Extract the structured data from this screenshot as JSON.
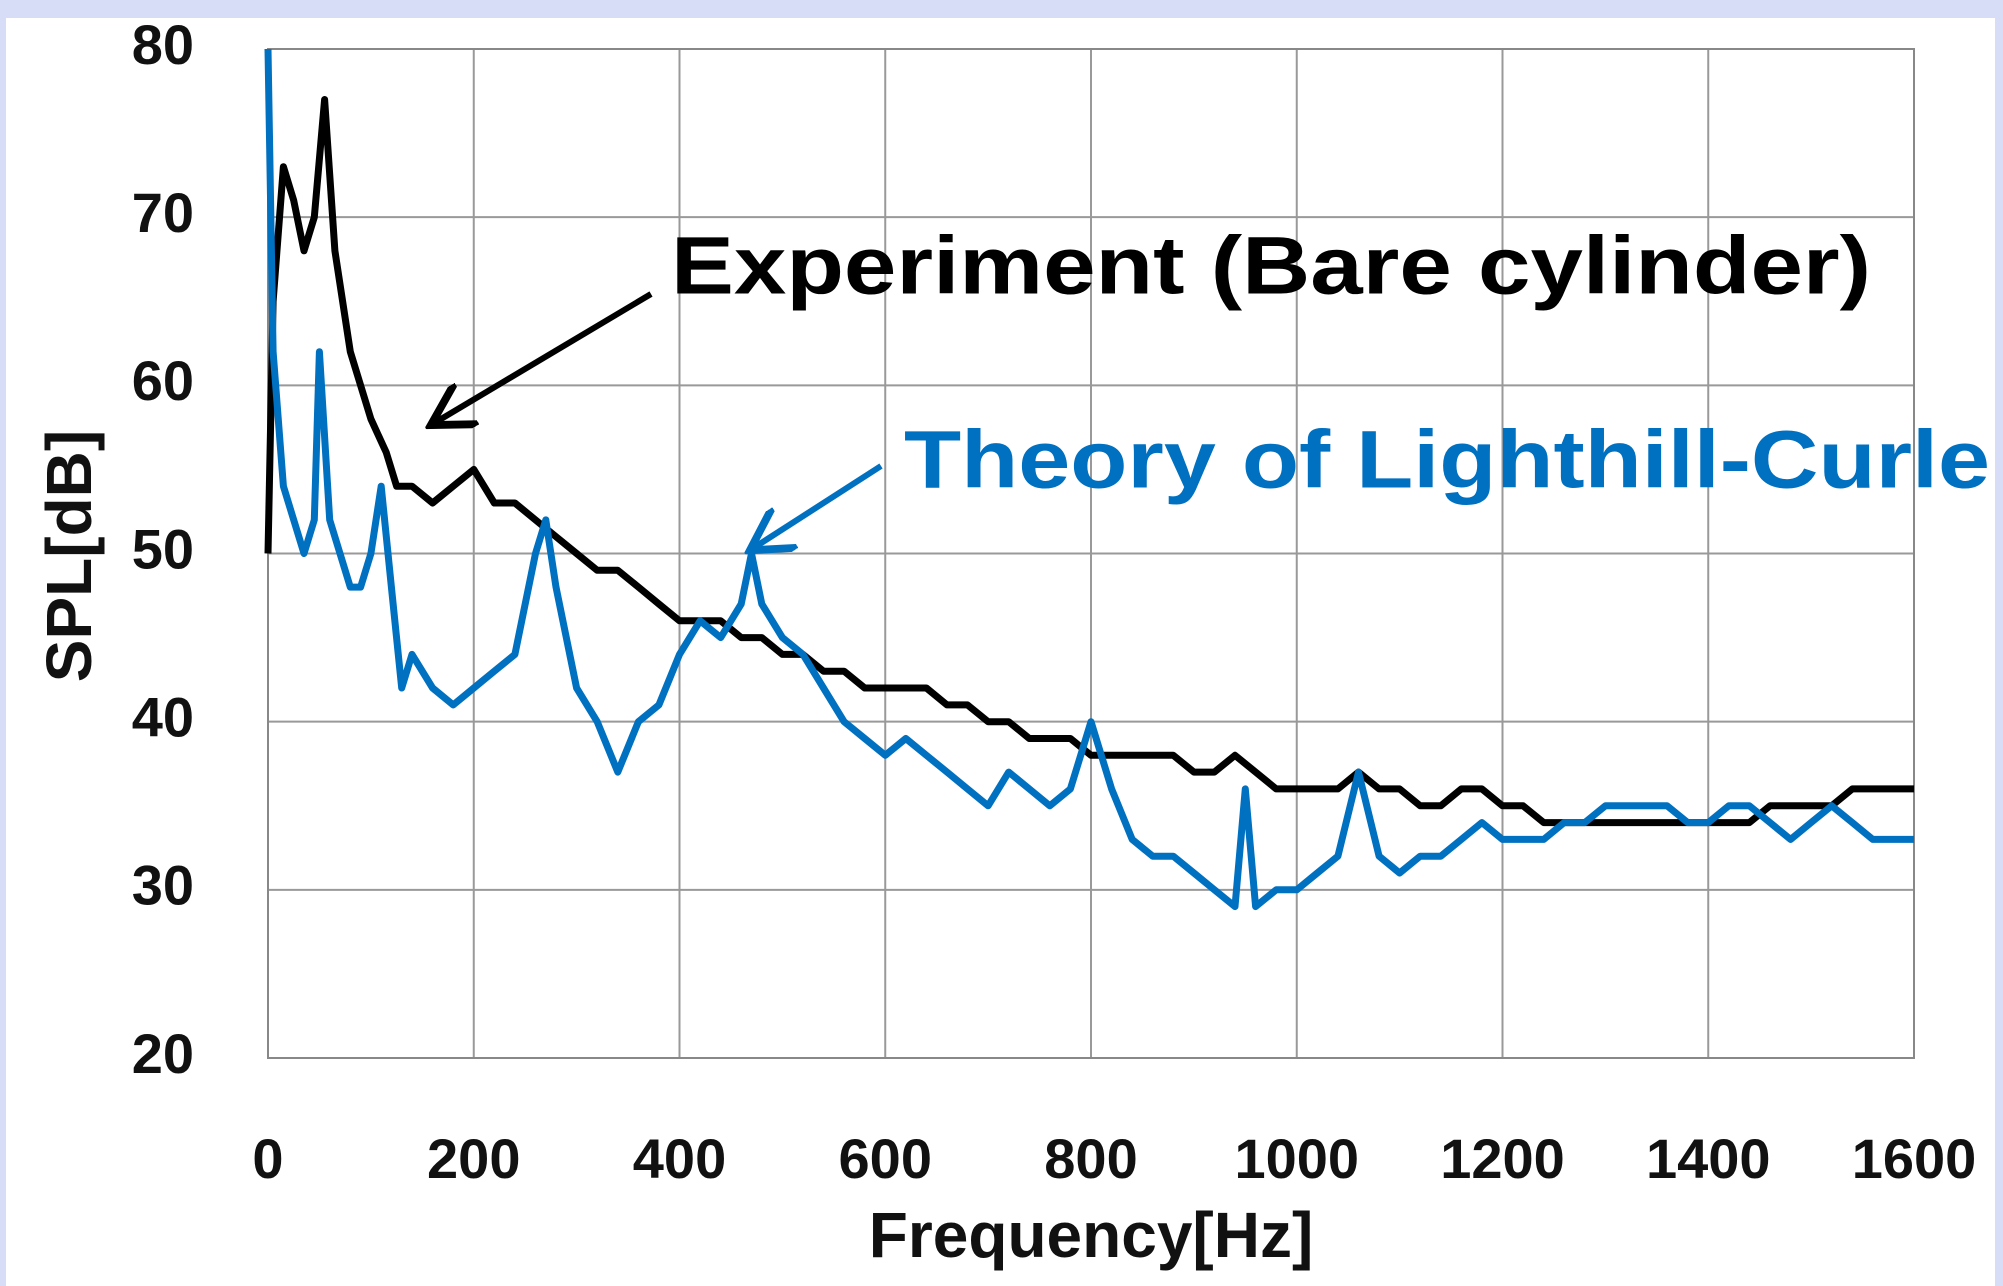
{
  "chart_data": {
    "type": "line",
    "x_label": "Frequency[Hz]",
    "y_label": "SPL[dB]",
    "annotations": [
      "Experiment (Bare cylinder)",
      "Theory of Lighthill-Curle"
    ],
    "xlim": [
      0,
      1600
    ],
    "ylim": [
      20,
      80
    ],
    "xticks": [
      0,
      200,
      400,
      600,
      800,
      1000,
      1200,
      1400,
      1600
    ],
    "yticks": [
      20,
      30,
      40,
      50,
      60,
      70,
      80
    ],
    "grid": true,
    "series": [
      {
        "name": "Experiment (Bare cylinder)",
        "color": "#000000",
        "x": [
          0,
          5,
          15,
          25,
          35,
          45,
          55,
          65,
          80,
          100,
          115,
          125,
          140,
          160,
          180,
          200,
          220,
          240,
          260,
          280,
          300,
          320,
          340,
          360,
          380,
          400,
          420,
          440,
          460,
          480,
          500,
          520,
          540,
          560,
          580,
          600,
          620,
          640,
          660,
          680,
          700,
          720,
          740,
          760,
          780,
          800,
          820,
          840,
          860,
          880,
          900,
          920,
          940,
          960,
          980,
          1000,
          1020,
          1040,
          1060,
          1080,
          1100,
          1120,
          1140,
          1160,
          1180,
          1200,
          1220,
          1240,
          1260,
          1280,
          1300,
          1320,
          1340,
          1360,
          1380,
          1400,
          1420,
          1440,
          1460,
          1480,
          1500,
          1520,
          1540,
          1560,
          1580,
          1600
        ],
        "values": [
          50,
          65,
          73,
          71,
          68,
          70,
          77,
          68,
          62,
          58,
          56,
          54,
          54,
          53,
          54,
          55,
          53,
          53,
          52,
          51,
          50,
          49,
          49,
          48,
          47,
          46,
          46,
          46,
          45,
          45,
          44,
          44,
          43,
          43,
          42,
          42,
          42,
          42,
          41,
          41,
          40,
          40,
          39,
          39,
          39,
          38,
          38,
          38,
          38,
          38,
          37,
          37,
          38,
          37,
          36,
          36,
          36,
          36,
          37,
          36,
          36,
          35,
          35,
          36,
          36,
          35,
          35,
          34,
          34,
          34,
          34,
          34,
          34,
          34,
          34,
          34,
          34,
          34,
          35,
          35,
          35,
          35,
          36,
          36,
          36,
          36
        ]
      },
      {
        "name": "Theory of Lighthill-Curle",
        "color": "#0070c0",
        "x": [
          0,
          5,
          15,
          25,
          35,
          45,
          50,
          60,
          70,
          80,
          90,
          100,
          110,
          120,
          130,
          140,
          160,
          180,
          200,
          220,
          240,
          260,
          270,
          280,
          300,
          320,
          340,
          360,
          380,
          400,
          420,
          440,
          460,
          470,
          480,
          500,
          520,
          540,
          560,
          580,
          600,
          620,
          640,
          660,
          680,
          700,
          720,
          740,
          760,
          780,
          800,
          820,
          840,
          860,
          880,
          900,
          920,
          940,
          950,
          960,
          980,
          1000,
          1020,
          1040,
          1060,
          1080,
          1100,
          1120,
          1140,
          1160,
          1180,
          1200,
          1220,
          1240,
          1260,
          1280,
          1300,
          1320,
          1340,
          1360,
          1380,
          1400,
          1420,
          1440,
          1460,
          1480,
          1500,
          1520,
          1540,
          1560,
          1580,
          1600
        ],
        "values": [
          80,
          62,
          54,
          52,
          50,
          52,
          62,
          52,
          50,
          48,
          48,
          50,
          54,
          48,
          42,
          44,
          42,
          41,
          42,
          43,
          44,
          50,
          52,
          48,
          42,
          40,
          37,
          40,
          41,
          44,
          46,
          45,
          47,
          50,
          47,
          45,
          44,
          42,
          40,
          39,
          38,
          39,
          38,
          37,
          36,
          35,
          37,
          36,
          35,
          36,
          40,
          36,
          33,
          32,
          32,
          31,
          30,
          29,
          36,
          29,
          30,
          30,
          31,
          32,
          37,
          32,
          31,
          32,
          32,
          33,
          34,
          33,
          33,
          33,
          34,
          34,
          35,
          35,
          35,
          35,
          34,
          34,
          35,
          35,
          34,
          33,
          34,
          35,
          34,
          33,
          33,
          33
        ]
      }
    ]
  }
}
